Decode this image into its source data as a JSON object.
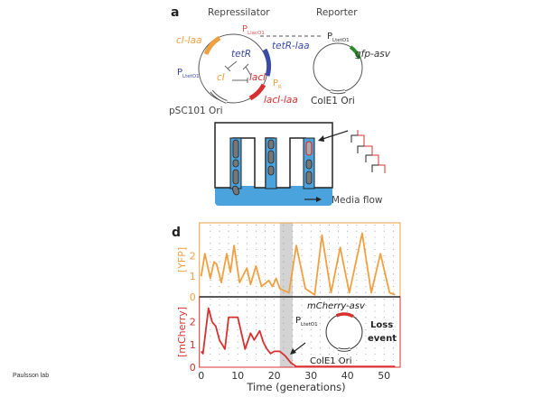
{
  "panel_a": {
    "letter": "a",
    "repressilator_title": "Repressilator",
    "reporter_title": "Reporter",
    "p_llaco1": "P",
    "p_llaco1_sub": "LlacO1",
    "p_ltet_left": "P",
    "p_ltet_left_sub": "LtetO1",
    "p_r": "P",
    "p_r_sub": "R",
    "p_ltet_reporter": "P",
    "p_ltet_reporter_sub": "LtetO1",
    "genes": {
      "cl_laa": "cI-laa",
      "tetR_laa": "tetR-laa",
      "lacI_laa": "lacI-laa",
      "gfp_asv": "gfp-asv"
    },
    "inner": {
      "tetR": "tetR",
      "cI": "cI",
      "lacI": "lacI"
    },
    "ori_left": "pSC101 Ori",
    "ori_right": "ColE1 Ori",
    "colors": {
      "orange": "#f0a040",
      "blue": "#3a4aa8",
      "red": "#d83030",
      "green": "#2a8a2a"
    }
  },
  "chip": {
    "media_flow": "Media flow",
    "channel_color": "#4ba3dd"
  },
  "panel_d": {
    "letter": "d",
    "inset": {
      "gene": "mCherry-asv",
      "promoter": "P",
      "promoter_sub": "LtetO1",
      "ori": "ColE1 Ori",
      "event": "Loss\nevent",
      "event_line1": "Loss",
      "event_line2": "event"
    }
  },
  "credit": "Paulsson lab",
  "chart_data": [
    {
      "type": "line",
      "ylabel": "[YFP]",
      "color": "#f0a040",
      "ylim": [
        0,
        3.6
      ],
      "yticks": [
        "0",
        "1",
        "2"
      ],
      "xlim": [
        0,
        53
      ],
      "grid": "dotted",
      "shaded_region": [
        21.5,
        25
      ],
      "x": [
        0,
        1,
        2.5,
        3.5,
        4.2,
        5.5,
        7,
        8,
        9,
        10.5,
        12.5,
        13.5,
        15,
        16.5,
        18.5,
        19.5,
        20.5,
        21.5,
        24,
        26,
        28.5,
        31,
        33,
        35.5,
        38,
        40.5,
        44,
        46.5,
        49,
        51.5,
        53
      ],
      "y": [
        1.0,
        2.1,
        0.9,
        1.7,
        1.6,
        0.7,
        2.1,
        1.2,
        2.5,
        0.7,
        1.4,
        0.6,
        1.5,
        0.5,
        0.8,
        0.5,
        0.9,
        0.4,
        0.2,
        2.5,
        0.4,
        0.1,
        3.0,
        0.2,
        2.4,
        0.2,
        3.1,
        0.2,
        2.1,
        0.2,
        0.1
      ]
    },
    {
      "type": "line",
      "ylabel": "[mCherry]",
      "xlabel": "Time (generations)",
      "color": "#d83030",
      "ylim": [
        0,
        3.1
      ],
      "yticks": [
        "0",
        "1",
        "2"
      ],
      "xlim": [
        0,
        53
      ],
      "xticks": [
        "0",
        "10",
        "20",
        "30",
        "40",
        "50"
      ],
      "grid": "dotted",
      "shaded_region": [
        21.5,
        25
      ],
      "x": [
        0,
        0.5,
        2,
        3,
        4,
        5,
        6.5,
        7.5,
        9,
        10,
        11,
        12,
        13.5,
        14.5,
        16,
        17,
        18,
        19,
        20,
        21.5,
        23,
        24.5,
        26,
        53
      ],
      "y": [
        0.7,
        0.6,
        2.6,
        2.0,
        1.8,
        1.2,
        0.8,
        2.2,
        2.2,
        2.2,
        1.5,
        0.8,
        1.5,
        1.2,
        1.6,
        1.1,
        0.8,
        0.6,
        0.7,
        0.7,
        0.5,
        0.2,
        0.03,
        0.03
      ]
    }
  ]
}
